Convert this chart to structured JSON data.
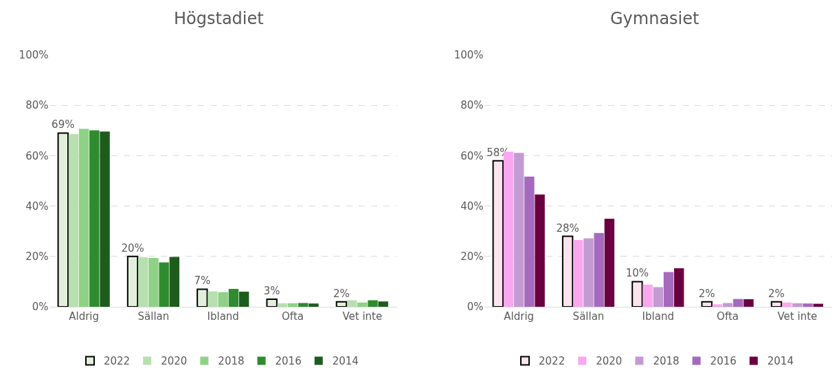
{
  "chart_data": [
    {
      "type": "bar",
      "title": "Högstadiet",
      "categories": [
        "Aldrig",
        "Sällan",
        "Ibland",
        "Ofta",
        "Vet inte"
      ],
      "series": [
        {
          "name": "2022",
          "color": "#e2efda",
          "values": [
            69,
            20,
            7,
            3,
            2
          ],
          "value_labels": [
            "69%",
            "20%",
            "7%",
            "3%",
            "2%"
          ]
        },
        {
          "name": "2020",
          "color": "#b7dfb0",
          "values": [
            68.6,
            19.7,
            6.1,
            1.4,
            2.6
          ]
        },
        {
          "name": "2018",
          "color": "#8fd186",
          "values": [
            70.7,
            19.4,
            5.8,
            1.4,
            1.7
          ]
        },
        {
          "name": "2016",
          "color": "#2e8b2e",
          "values": [
            70.1,
            17.6,
            7.1,
            1.5,
            2.6
          ]
        },
        {
          "name": "2014",
          "color": "#1e5c1e",
          "values": [
            69.6,
            19.8,
            6.0,
            1.3,
            2.1
          ]
        }
      ],
      "ylim": [
        0,
        100
      ],
      "yticks": [
        {
          "value": 0,
          "label": "0%"
        },
        {
          "value": 20,
          "label": "20%"
        },
        {
          "value": 40,
          "label": "40%"
        },
        {
          "value": 60,
          "label": "60%"
        },
        {
          "value": 80,
          "label": "80%"
        },
        {
          "value": 100,
          "label": "100%"
        }
      ],
      "grid": "y",
      "legend": "bottom"
    },
    {
      "type": "bar",
      "title": "Gymnasiet",
      "categories": [
        "Aldrig",
        "Sällan",
        "Ibland",
        "Ofta",
        "Vet inte"
      ],
      "series": [
        {
          "name": "2022",
          "color": "#fce4ec",
          "values": [
            58,
            28,
            10,
            2,
            2
          ],
          "value_labels": [
            "58%",
            "28%",
            "10%",
            "2%",
            "2%"
          ]
        },
        {
          "name": "2020",
          "color": "#f9a8f0",
          "values": [
            61.6,
            26.5,
            8.8,
            1.0,
            1.7
          ]
        },
        {
          "name": "2018",
          "color": "#c39bd3",
          "values": [
            61.1,
            27.2,
            7.8,
            1.5,
            1.4
          ]
        },
        {
          "name": "2016",
          "color": "#a569bd",
          "values": [
            51.7,
            29.3,
            13.8,
            3.1,
            1.3
          ]
        },
        {
          "name": "2014",
          "color": "#6b0040",
          "values": [
            44.6,
            35.0,
            15.3,
            3.0,
            1.2
          ]
        }
      ],
      "ylim": [
        0,
        100
      ],
      "yticks": [
        {
          "value": 0,
          "label": "0%"
        },
        {
          "value": 20,
          "label": "20%"
        },
        {
          "value": 40,
          "label": "40%"
        },
        {
          "value": 60,
          "label": "60%"
        },
        {
          "value": 80,
          "label": "80%"
        },
        {
          "value": 100,
          "label": "100%"
        }
      ],
      "grid": "y",
      "legend": "bottom"
    }
  ]
}
